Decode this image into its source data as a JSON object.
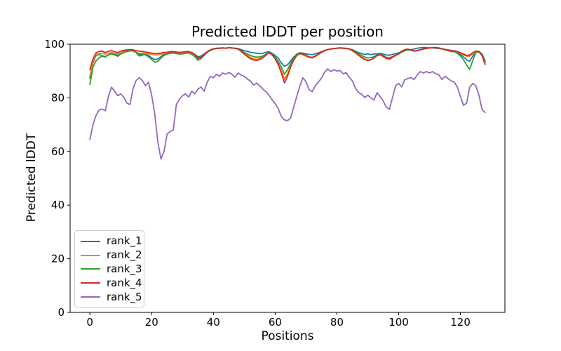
{
  "chart_data": {
    "type": "line",
    "title": "Predicted lDDT per position",
    "xlabel": "Positions",
    "ylabel": "Predicted lDDT",
    "xlim": [
      -6.4,
      134.4
    ],
    "ylim": [
      0,
      100
    ],
    "xticks": [
      0,
      20,
      40,
      60,
      80,
      100,
      120
    ],
    "yticks": [
      0,
      20,
      40,
      60,
      80,
      100
    ],
    "grid": false,
    "legend_position": "lower-left",
    "axis_color": "#000000",
    "x": [
      0,
      1,
      2,
      3,
      4,
      5,
      6,
      7,
      8,
      9,
      10,
      11,
      12,
      13,
      14,
      15,
      16,
      17,
      18,
      19,
      20,
      21,
      22,
      23,
      24,
      25,
      26,
      27,
      28,
      29,
      30,
      31,
      32,
      33,
      34,
      35,
      36,
      37,
      38,
      39,
      40,
      41,
      42,
      43,
      44,
      45,
      46,
      47,
      48,
      49,
      50,
      51,
      52,
      53,
      54,
      55,
      56,
      57,
      58,
      59,
      60,
      61,
      62,
      63,
      64,
      65,
      66,
      67,
      68,
      69,
      70,
      71,
      72,
      73,
      74,
      75,
      76,
      77,
      78,
      79,
      80,
      81,
      82,
      83,
      84,
      85,
      86,
      87,
      88,
      89,
      90,
      91,
      92,
      93,
      94,
      95,
      96,
      97,
      98,
      99,
      100,
      101,
      102,
      103,
      104,
      105,
      106,
      107,
      108,
      109,
      110,
      111,
      112,
      113,
      114,
      115,
      116,
      117,
      118,
      119,
      120,
      121,
      122,
      123,
      124,
      125,
      126,
      127,
      128
    ],
    "series": [
      {
        "name": "rank_1",
        "color": "#1f77b4",
        "values": [
          87.3,
          93.0,
          95.8,
          96.2,
          95.7,
          95.4,
          96.0,
          96.6,
          96.2,
          95.8,
          96.6,
          97.4,
          97.7,
          97.9,
          97.7,
          96.8,
          95.6,
          95.9,
          96.3,
          95.8,
          94.9,
          94.3,
          94.5,
          95.4,
          96.2,
          96.6,
          96.9,
          97.0,
          96.8,
          96.5,
          96.6,
          96.8,
          96.9,
          96.6,
          96.2,
          95.3,
          95.6,
          96.4,
          97.2,
          97.8,
          98.2,
          98.4,
          98.5,
          98.6,
          98.5,
          98.7,
          98.6,
          98.5,
          98.4,
          98.0,
          97.6,
          97.3,
          97.0,
          96.8,
          96.7,
          96.5,
          96.6,
          97.0,
          97.2,
          96.6,
          95.8,
          94.8,
          93.0,
          91.8,
          92.3,
          93.8,
          95.2,
          96.3,
          96.8,
          96.7,
          96.4,
          96.2,
          96.1,
          96.4,
          96.8,
          97.2,
          97.7,
          98.0,
          98.2,
          98.4,
          98.5,
          98.6,
          98.5,
          98.4,
          98.2,
          98.0,
          97.4,
          96.9,
          96.5,
          96.2,
          96.4,
          96.1,
          96.4,
          96.4,
          96.6,
          96.3,
          96.0,
          95.9,
          96.2,
          96.5,
          96.8,
          97.2,
          97.6,
          97.9,
          98.0,
          98.2,
          98.5,
          98.7,
          98.8,
          98.8,
          98.7,
          98.6,
          98.5,
          98.4,
          98.3,
          98.1,
          97.9,
          97.7,
          97.5,
          97.0,
          96.2,
          95.2,
          94.2,
          93.6,
          95.6,
          97.1,
          97.3,
          96.4,
          93.8
        ]
      },
      {
        "name": "rank_2",
        "color": "#ff7f0e",
        "values": [
          88.0,
          93.5,
          96.2,
          96.5,
          96.6,
          96.3,
          96.6,
          96.9,
          96.6,
          96.4,
          96.8,
          97.1,
          97.2,
          97.5,
          97.4,
          97.0,
          96.6,
          96.7,
          96.6,
          96.4,
          96.2,
          96.0,
          96.1,
          96.3,
          96.5,
          96.6,
          96.7,
          96.8,
          96.6,
          96.5,
          96.6,
          96.8,
          96.9,
          96.6,
          96.0,
          94.5,
          95.0,
          96.0,
          97.0,
          97.7,
          98.3,
          98.5,
          98.5,
          98.7,
          98.5,
          98.8,
          98.6,
          98.5,
          98.3,
          97.5,
          96.6,
          95.8,
          95.1,
          94.6,
          94.4,
          94.8,
          95.3,
          96.1,
          96.8,
          96.0,
          94.8,
          92.8,
          90.0,
          86.9,
          89.0,
          91.8,
          94.2,
          95.8,
          96.4,
          96.0,
          95.5,
          95.0,
          94.9,
          95.4,
          96.1,
          96.9,
          97.5,
          98.0,
          98.2,
          98.4,
          98.5,
          98.7,
          98.6,
          98.5,
          98.3,
          97.7,
          97.0,
          96.2,
          95.3,
          94.5,
          94.1,
          94.3,
          94.9,
          95.7,
          96.0,
          95.5,
          94.6,
          94.3,
          95.0,
          95.7,
          96.4,
          97.2,
          97.9,
          98.1,
          97.7,
          97.4,
          97.6,
          97.9,
          98.2,
          98.5,
          98.7,
          98.8,
          98.8,
          98.6,
          98.3,
          98.0,
          97.7,
          97.5,
          97.6,
          97.2,
          96.6,
          96.0,
          95.5,
          95.5,
          96.4,
          97.2,
          97.0,
          95.9,
          93.0
        ]
      },
      {
        "name": "rank_3",
        "color": "#2ca02c",
        "values": [
          85.0,
          91.5,
          93.8,
          95.0,
          95.5,
          95.2,
          96.0,
          96.4,
          96.0,
          95.5,
          96.3,
          96.9,
          97.3,
          97.7,
          97.6,
          96.9,
          96.2,
          96.3,
          96.0,
          95.3,
          94.3,
          93.3,
          93.6,
          94.8,
          95.8,
          96.3,
          96.6,
          96.7,
          96.5,
          96.3,
          96.4,
          96.6,
          96.7,
          96.2,
          95.4,
          94.0,
          94.6,
          95.8,
          97.0,
          97.7,
          98.2,
          98.4,
          98.5,
          98.6,
          98.5,
          98.7,
          98.6,
          98.5,
          98.4,
          97.7,
          96.9,
          96.3,
          95.8,
          95.4,
          95.2,
          95.3,
          95.6,
          96.3,
          96.8,
          96.2,
          95.2,
          93.6,
          91.5,
          88.8,
          90.5,
          92.8,
          94.8,
          96.2,
          96.8,
          96.5,
          95.8,
          95.2,
          95.0,
          95.6,
          96.3,
          97.0,
          97.6,
          98.0,
          98.2,
          98.4,
          98.5,
          98.6,
          98.5,
          98.4,
          98.2,
          97.9,
          97.2,
          96.5,
          95.8,
          95.2,
          94.9,
          95.0,
          95.4,
          96.0,
          96.2,
          95.8,
          95.1,
          94.9,
          95.4,
          95.9,
          96.4,
          97.0,
          97.6,
          97.9,
          97.7,
          97.5,
          97.7,
          98.0,
          98.3,
          98.5,
          98.6,
          98.7,
          98.7,
          98.5,
          98.2,
          97.9,
          97.6,
          97.3,
          97.2,
          96.6,
          95.6,
          94.2,
          92.3,
          90.6,
          94.0,
          96.9,
          97.2,
          96.2,
          93.4
        ]
      },
      {
        "name": "rank_4",
        "color": "#d62728",
        "values": [
          90.5,
          94.5,
          96.8,
          97.3,
          97.4,
          96.9,
          97.4,
          97.6,
          97.2,
          96.9,
          97.4,
          97.7,
          97.9,
          98.0,
          97.9,
          97.6,
          97.4,
          97.3,
          97.1,
          96.9,
          96.7,
          96.5,
          96.6,
          96.7,
          96.9,
          97.0,
          97.2,
          97.3,
          97.1,
          97.0,
          97.1,
          97.2,
          97.3,
          96.9,
          96.2,
          94.8,
          95.2,
          96.2,
          97.2,
          97.9,
          98.3,
          98.5,
          98.5,
          98.6,
          98.5,
          98.7,
          98.6,
          98.4,
          98.2,
          97.3,
          96.3,
          95.4,
          94.6,
          94.1,
          93.9,
          94.3,
          94.9,
          95.9,
          96.9,
          96.0,
          94.6,
          92.3,
          89.3,
          85.6,
          88.0,
          91.5,
          94.0,
          95.8,
          96.6,
          96.3,
          95.8,
          95.3,
          95.1,
          95.6,
          96.3,
          97.0,
          97.6,
          98.0,
          98.2,
          98.4,
          98.5,
          98.6,
          98.5,
          98.4,
          98.2,
          97.6,
          96.8,
          95.9,
          95.0,
          94.3,
          93.9,
          94.2,
          94.8,
          95.8,
          96.1,
          95.4,
          94.8,
          94.6,
          95.2,
          95.9,
          96.6,
          97.4,
          98.0,
          98.2,
          97.8,
          97.4,
          97.6,
          97.9,
          98.2,
          98.4,
          98.6,
          98.7,
          98.8,
          98.6,
          98.3,
          98.0,
          97.7,
          97.4,
          97.6,
          97.3,
          96.8,
          96.3,
          95.8,
          96.0,
          96.8,
          97.5,
          97.3,
          95.8,
          92.4
        ]
      },
      {
        "name": "rank_5",
        "color": "#9467bd",
        "values": [
          64.5,
          70.0,
          73.5,
          75.5,
          75.8,
          75.2,
          80.5,
          84.0,
          82.5,
          80.8,
          81.5,
          80.2,
          78.0,
          77.5,
          83.5,
          86.5,
          87.5,
          86.5,
          84.5,
          85.8,
          81.0,
          74.0,
          63.5,
          57.2,
          60.0,
          66.5,
          67.5,
          68.0,
          77.5,
          79.5,
          80.8,
          81.5,
          80.3,
          82.5,
          81.5,
          83.3,
          84.0,
          82.5,
          85.8,
          88.0,
          87.5,
          88.8,
          88.0,
          89.3,
          88.8,
          89.5,
          88.8,
          87.7,
          89.3,
          88.5,
          88.0,
          87.0,
          86.3,
          84.8,
          85.5,
          84.5,
          83.3,
          82.3,
          81.0,
          79.3,
          77.8,
          76.0,
          73.0,
          71.8,
          71.5,
          72.5,
          76.5,
          80.5,
          84.5,
          87.5,
          86.0,
          83.0,
          82.3,
          84.5,
          85.9,
          87.3,
          89.5,
          90.8,
          89.8,
          90.5,
          90.0,
          90.2,
          89.0,
          89.4,
          87.6,
          86.3,
          83.6,
          82.0,
          81.4,
          80.1,
          81.0,
          80.0,
          79.2,
          81.9,
          80.5,
          78.8,
          76.5,
          75.7,
          80.1,
          84.5,
          85.4,
          84.1,
          86.8,
          87.2,
          87.6,
          86.8,
          88.5,
          89.8,
          89.3,
          89.8,
          89.3,
          89.8,
          89.0,
          88.6,
          86.8,
          88.0,
          87.2,
          86.3,
          85.9,
          84.0,
          80.5,
          77.2,
          78.0,
          84.0,
          85.4,
          84.5,
          81.0,
          75.7,
          74.5
        ]
      }
    ]
  }
}
